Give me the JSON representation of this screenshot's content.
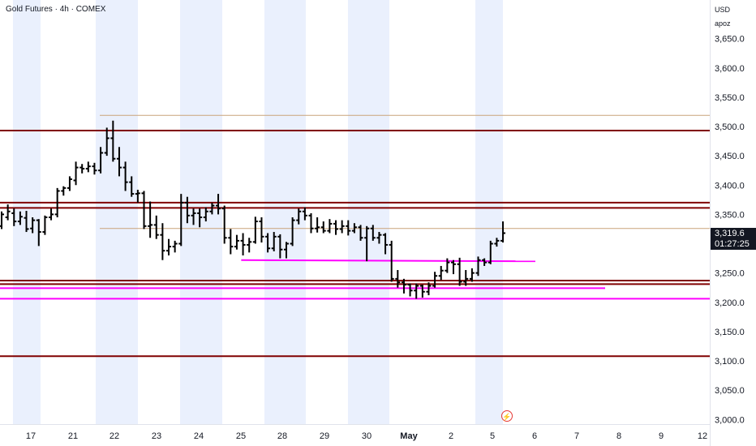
{
  "header": {
    "title": "Gold Futures · 4h · COMEX"
  },
  "scale": {
    "currency": "USD",
    "mode_label": "apoz"
  },
  "last_price": {
    "value": "3,319.6",
    "countdown": "01:27:25"
  },
  "colors": {
    "candle": "#000000",
    "resistance": "#800000",
    "support_magenta": "#ff00ff",
    "thin_level": "#c9a37a",
    "session_shade": "#eaf0fd",
    "badge": "#131722"
  },
  "icons": {
    "replay": "lightning-circle-icon"
  },
  "chart_data": {
    "type": "bar",
    "title": "Gold Futures · 4h · COMEX",
    "xlabel": "",
    "ylabel": "",
    "ylim": [
      2990,
      3700
    ],
    "y_ticks": [
      3000,
      3050,
      3100,
      3150,
      3200,
      3250,
      3300,
      3350,
      3400,
      3450,
      3500,
      3550,
      3600,
      3650
    ],
    "y_tick_labels": [
      "3,000.0",
      "3,050.0",
      "3,100.0",
      "3,150.0",
      "3,200.0",
      "3,250.0",
      "3,300.0",
      "3,350.0",
      "3,400.0",
      "3,450.0",
      "3,500.0",
      "3,550.0",
      "3,600.0",
      "3,650.0"
    ],
    "x_tick_labels": [
      "17",
      "21",
      "22",
      "23",
      "24",
      "25",
      "28",
      "29",
      "30",
      "May",
      "2",
      "5",
      "6",
      "7",
      "8",
      "9",
      "12"
    ],
    "horizontal_levels": [
      {
        "price": 3493,
        "style": "resistance"
      },
      {
        "price": 3370,
        "style": "resistance"
      },
      {
        "price": 3361,
        "style": "resistance"
      },
      {
        "price": 3237,
        "style": "resistance"
      },
      {
        "price": 3231,
        "style": "resistance"
      },
      {
        "price": 3108,
        "style": "resistance"
      },
      {
        "price": 3519,
        "style": "thin"
      },
      {
        "price": 3326,
        "style": "thin"
      }
    ],
    "support_lines": [
      {
        "price_start": 3272,
        "price_end": 3270,
        "from_index": 45,
        "to": "12"
      },
      {
        "price_start": 3224,
        "price_end": 3224,
        "from_index": 0,
        "to": "9"
      },
      {
        "price_start": 3206,
        "price_end": 3206,
        "from_index": 0,
        "to": "12"
      }
    ],
    "ohlc": [
      [
        3330,
        3355,
        3325,
        3350
      ],
      [
        3345,
        3367,
        3340,
        3355
      ],
      [
        3352,
        3360,
        3330,
        3338
      ],
      [
        3338,
        3355,
        3332,
        3346
      ],
      [
        3344,
        3356,
        3320,
        3325
      ],
      [
        3326,
        3345,
        3318,
        3340
      ],
      [
        3340,
        3342,
        3296,
        3320
      ],
      [
        3320,
        3348,
        3315,
        3345
      ],
      [
        3345,
        3360,
        3340,
        3350
      ],
      [
        3350,
        3395,
        3345,
        3390
      ],
      [
        3390,
        3398,
        3382,
        3395
      ],
      [
        3395,
        3415,
        3390,
        3410
      ],
      [
        3408,
        3440,
        3400,
        3430
      ],
      [
        3430,
        3436,
        3420,
        3428
      ],
      [
        3428,
        3440,
        3422,
        3432
      ],
      [
        3432,
        3438,
        3418,
        3425
      ],
      [
        3425,
        3465,
        3420,
        3455
      ],
      [
        3455,
        3498,
        3450,
        3480
      ],
      [
        3480,
        3510,
        3440,
        3445
      ],
      [
        3445,
        3465,
        3415,
        3430
      ],
      [
        3430,
        3440,
        3390,
        3405
      ],
      [
        3405,
        3415,
        3380,
        3385
      ],
      [
        3385,
        3392,
        3370,
        3386
      ],
      [
        3386,
        3390,
        3325,
        3330
      ],
      [
        3330,
        3372,
        3310,
        3332
      ],
      [
        3332,
        3348,
        3308,
        3315
      ],
      [
        3315,
        3335,
        3272,
        3288
      ],
      [
        3288,
        3308,
        3280,
        3295
      ],
      [
        3295,
        3305,
        3285,
        3300
      ],
      [
        3300,
        3385,
        3296,
        3370
      ],
      [
        3370,
        3380,
        3335,
        3348
      ],
      [
        3348,
        3360,
        3332,
        3352
      ],
      [
        3352,
        3360,
        3328,
        3345
      ],
      [
        3345,
        3362,
        3338,
        3355
      ],
      [
        3355,
        3370,
        3350,
        3365
      ],
      [
        3365,
        3385,
        3350,
        3360
      ],
      [
        3360,
        3365,
        3300,
        3310
      ],
      [
        3310,
        3325,
        3282,
        3295
      ],
      [
        3295,
        3315,
        3290,
        3305
      ],
      [
        3305,
        3318,
        3280,
        3298
      ],
      [
        3298,
        3310,
        3285,
        3303
      ],
      [
        3303,
        3346,
        3300,
        3338
      ],
      [
        3338,
        3345,
        3302,
        3312
      ],
      [
        3312,
        3318,
        3285,
        3292
      ],
      [
        3292,
        3320,
        3287,
        3312
      ],
      [
        3312,
        3316,
        3275,
        3290
      ],
      [
        3290,
        3303,
        3275,
        3300
      ],
      [
        3300,
        3345,
        3296,
        3340
      ],
      [
        3340,
        3360,
        3333,
        3355
      ],
      [
        3355,
        3362,
        3340,
        3348
      ],
      [
        3348,
        3352,
        3318,
        3326
      ],
      [
        3326,
        3345,
        3319,
        3328
      ],
      [
        3328,
        3338,
        3318,
        3322
      ],
      [
        3322,
        3342,
        3318,
        3334
      ],
      [
        3334,
        3340,
        3315,
        3325
      ],
      [
        3325,
        3340,
        3318,
        3330
      ],
      [
        3330,
        3340,
        3314,
        3322
      ],
      [
        3322,
        3335,
        3318,
        3328
      ],
      [
        3328,
        3332,
        3305,
        3310
      ],
      [
        3310,
        3330,
        3270,
        3326
      ],
      [
        3326,
        3332,
        3305,
        3310
      ],
      [
        3310,
        3320,
        3300,
        3315
      ],
      [
        3315,
        3318,
        3282,
        3298
      ],
      [
        3298,
        3305,
        3235,
        3240
      ],
      [
        3240,
        3255,
        3225,
        3234
      ],
      [
        3234,
        3240,
        3215,
        3230
      ],
      [
        3230,
        3232,
        3210,
        3220
      ],
      [
        3220,
        3232,
        3206,
        3228
      ],
      [
        3228,
        3230,
        3208,
        3218
      ],
      [
        3218,
        3234,
        3212,
        3228
      ],
      [
        3228,
        3252,
        3225,
        3245
      ],
      [
        3245,
        3262,
        3238,
        3254
      ],
      [
        3254,
        3275,
        3250,
        3268
      ],
      [
        3268,
        3272,
        3248,
        3265
      ],
      [
        3265,
        3276,
        3228,
        3235
      ],
      [
        3235,
        3255,
        3228,
        3240
      ],
      [
        3240,
        3258,
        3235,
        3250
      ],
      [
        3250,
        3278,
        3245,
        3272
      ],
      [
        3272,
        3275,
        3262,
        3268
      ],
      [
        3268,
        3305,
        3265,
        3300
      ],
      [
        3300,
        3310,
        3295,
        3305
      ],
      [
        3305,
        3338,
        3302,
        3318
      ]
    ]
  }
}
